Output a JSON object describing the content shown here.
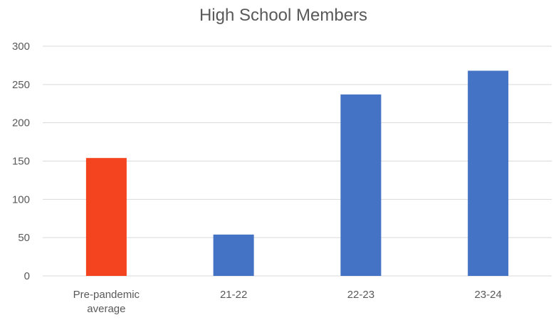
{
  "chart_data": {
    "type": "bar",
    "title": "High School Members",
    "xlabel": "",
    "ylabel": "",
    "categories": [
      "Pre-pandemic average",
      "21-22",
      "22-23",
      "23-24"
    ],
    "category_lines": [
      [
        "Pre-pandemic",
        "average"
      ],
      [
        "21-22"
      ],
      [
        "22-23"
      ],
      [
        "23-24"
      ]
    ],
    "values": [
      154,
      54,
      237,
      268
    ],
    "bar_colors": [
      "#f4431f",
      "#4472c4",
      "#4472c4",
      "#4472c4"
    ],
    "ylim": [
      0,
      300
    ],
    "yticks": [
      0,
      50,
      100,
      150,
      200,
      250,
      300
    ],
    "grid": true,
    "legend": "none"
  }
}
